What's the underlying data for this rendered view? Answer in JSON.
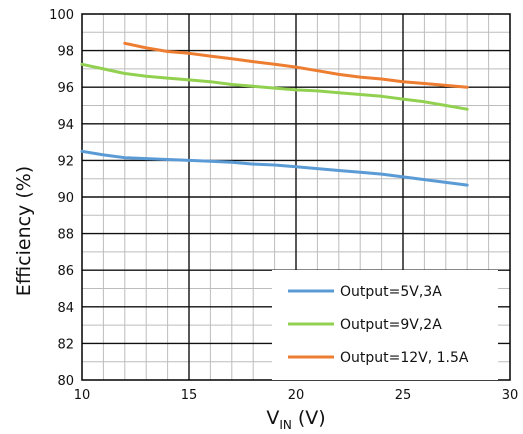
{
  "chart_data": {
    "type": "line",
    "xlabel_main": "V",
    "xlabel_sub": "IN",
    "xlabel_unit": "(V)",
    "ylabel": "Efficiency (%)",
    "xlim": [
      10,
      30
    ],
    "ylim": [
      80,
      100
    ],
    "x_ticks": [
      10,
      15,
      20,
      25,
      30
    ],
    "y_ticks": [
      80,
      82,
      84,
      86,
      88,
      90,
      92,
      94,
      96,
      98,
      100
    ],
    "x_minor_step": 1,
    "y_minor_step": 1,
    "grid": true,
    "legend_position": "bottom-right",
    "series": [
      {
        "name": "Output=5V,3A",
        "color": "#5b9bd5",
        "x": [
          10,
          11,
          12,
          13,
          14,
          15,
          16,
          17,
          18,
          19,
          20,
          21,
          22,
          23,
          24,
          25,
          26,
          27,
          28
        ],
        "y": [
          92.5,
          92.3,
          92.15,
          92.1,
          92.05,
          92.0,
          91.95,
          91.9,
          91.8,
          91.75,
          91.65,
          91.55,
          91.45,
          91.35,
          91.25,
          91.1,
          90.95,
          90.8,
          90.65
        ]
      },
      {
        "name": "Output=9V,2A",
        "color": "#92d050",
        "x": [
          10,
          11,
          12,
          13,
          14,
          15,
          16,
          17,
          18,
          19,
          20,
          21,
          22,
          23,
          24,
          25,
          26,
          27,
          28
        ],
        "y": [
          97.25,
          97.0,
          96.75,
          96.6,
          96.5,
          96.4,
          96.3,
          96.15,
          96.05,
          95.95,
          95.85,
          95.8,
          95.7,
          95.6,
          95.5,
          95.35,
          95.2,
          95.0,
          94.8
        ]
      },
      {
        "name": "Output=12V, 1.5A",
        "color": "#ed7d31",
        "x": [
          12,
          13,
          14,
          15,
          16,
          17,
          18,
          19,
          20,
          21,
          22,
          23,
          24,
          25,
          26,
          27,
          28
        ],
        "y": [
          98.4,
          98.15,
          97.95,
          97.85,
          97.7,
          97.55,
          97.4,
          97.25,
          97.1,
          96.9,
          96.7,
          96.55,
          96.45,
          96.3,
          96.2,
          96.1,
          96.0
        ]
      }
    ]
  }
}
